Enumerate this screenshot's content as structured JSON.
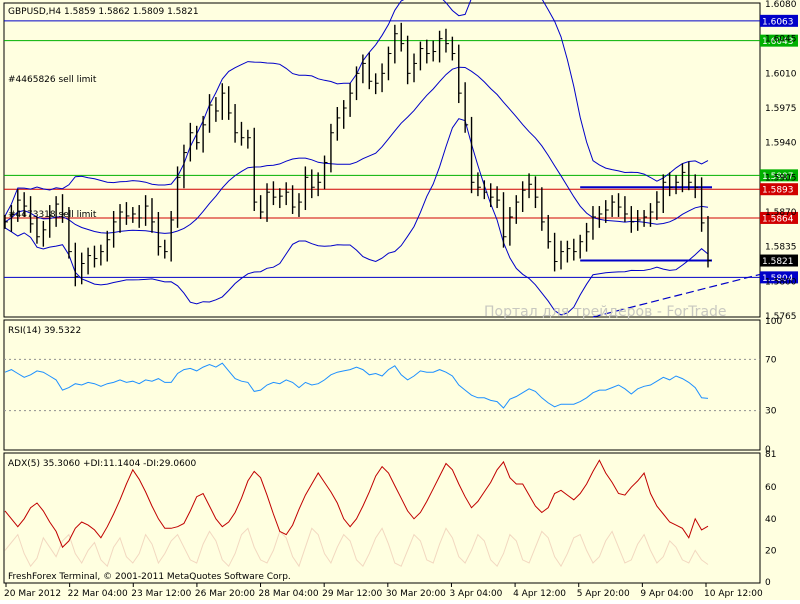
{
  "app": {
    "footer": "FreshForex Terminal, © 2001-2011 MetaQuotes Software Corp.",
    "watermark": "Портал для трейдеров - ForTrade"
  },
  "colors": {
    "background": "#ffffe0",
    "candles": "#000000",
    "bands": "#0000c8",
    "rsi": "#1e90ff",
    "adx": "#c00000",
    "di": "#f2d8c0",
    "green_level": "#00b000",
    "red_level": "#d00000",
    "blue_level": "#0000c8"
  },
  "chart_data": [
    {
      "type": "candlestick",
      "title": "GBPUSD,H4  1.5859 1.5862 1.5809 1.5821",
      "ylim": [
        1.5765,
        1.608
      ],
      "y_ticks": [
        "1.6080",
        "1.6045",
        "1.6010",
        "1.5975",
        "1.5940",
        "1.5905",
        "1.5870",
        "1.5835",
        "1.5800",
        "1.5765"
      ],
      "x_labels": [
        "20 Mar 2012",
        "22 Mar 04:00",
        "23 Mar 12:00",
        "26 Mar 20:00",
        "28 Mar 04:00",
        "29 Mar 12:00",
        "30 Mar 20:00",
        "3 Apr 04:00",
        "4 Apr 12:00",
        "5 Apr 20:00",
        "9 Apr 04:00",
        "10 Apr 12:00"
      ],
      "levels": [
        {
          "value": 1.6063,
          "label": "1.6063",
          "color": "blue"
        },
        {
          "value": 1.6043,
          "label": "1.6043",
          "color": "green"
        },
        {
          "value": 1.5907,
          "label": "1.5907",
          "color": "green"
        },
        {
          "value": 1.5893,
          "label": "1.5893",
          "color": "red"
        },
        {
          "value": 1.5864,
          "label": "1.5864",
          "color": "red"
        },
        {
          "value": 1.5821,
          "label": "1.5821",
          "color": "current"
        },
        {
          "value": 1.5804,
          "label": "1.5804",
          "color": "blue"
        }
      ],
      "annotations": [
        {
          "text": "#4465826 sell limit",
          "price": 1.6011
        },
        {
          "text": "#4473318 sell limit",
          "price": 1.5864
        }
      ],
      "close": [
        1.586,
        1.5868,
        1.5882,
        1.5876,
        1.5858,
        1.5845,
        1.5852,
        1.5866,
        1.5878,
        1.5868,
        1.583,
        1.5805,
        1.5818,
        1.5826,
        1.5823,
        1.583,
        1.5842,
        1.586,
        1.587,
        1.5866,
        1.5868,
        1.5864,
        1.5876,
        1.586,
        1.5835,
        1.583,
        1.5862,
        1.5905,
        1.593,
        1.595,
        1.594,
        1.5958,
        1.5978,
        1.5972,
        1.599,
        1.597,
        1.595,
        1.5945,
        1.5945,
        1.588,
        1.587,
        1.589,
        1.5885,
        1.5886,
        1.589,
        1.5875,
        1.588,
        1.5905,
        1.5895,
        1.59,
        1.592,
        1.595,
        1.5965,
        1.5975,
        1.599,
        1.601,
        1.602,
        1.6002,
        1.6,
        1.601,
        1.603,
        1.605,
        1.604,
        1.601,
        1.602,
        1.6035,
        1.603,
        1.6032,
        1.6045,
        1.604,
        1.603,
        1.599,
        1.5958,
        1.59,
        1.5895,
        1.589,
        1.5885,
        1.5882,
        1.5845,
        1.5865,
        1.588,
        1.5892,
        1.5898,
        1.5885,
        1.586,
        1.584,
        1.582,
        1.583,
        1.5833,
        1.583,
        1.584,
        1.585,
        1.5865,
        1.5868,
        1.5872,
        1.588,
        1.5875,
        1.5868,
        1.586,
        1.5862,
        1.5865,
        1.587,
        1.588,
        1.59,
        1.5895,
        1.59,
        1.591,
        1.59,
        1.5895,
        1.5859,
        1.5821
      ]
    },
    {
      "type": "line",
      "title": "RSI(14) 39.5322",
      "ylim": [
        0,
        100
      ],
      "y_ticks": [
        "100",
        "70",
        "30",
        "0"
      ],
      "levels": [
        70,
        30
      ],
      "values": [
        60,
        62,
        59,
        56,
        58,
        61,
        60,
        57,
        54,
        46,
        48,
        51,
        50,
        52,
        51,
        49,
        51,
        52,
        54,
        52,
        53,
        51,
        54,
        53,
        55,
        52,
        52,
        59,
        62,
        63,
        61,
        64,
        66,
        64,
        67,
        61,
        55,
        53,
        52,
        45,
        46,
        50,
        52,
        51,
        54,
        52,
        48,
        52,
        50,
        51,
        54,
        58,
        60,
        61,
        62,
        64,
        62,
        58,
        59,
        57,
        62,
        65,
        58,
        54,
        57,
        61,
        60,
        60,
        62,
        60,
        57,
        50,
        46,
        42,
        40,
        40,
        38,
        37,
        32,
        39,
        41,
        44,
        47,
        45,
        40,
        36,
        33,
        35,
        35,
        35,
        37,
        40,
        44,
        46,
        46,
        48,
        50,
        47,
        43,
        47,
        49,
        50,
        53,
        56,
        54,
        57,
        55,
        52,
        48,
        40,
        39.5
      ]
    },
    {
      "type": "line",
      "title": "ADX(5) 35.3060 +DI:11.1404 -DI:29.0600",
      "ylim": [
        0,
        81
      ],
      "y_ticks": [
        "81",
        "60",
        "40",
        "20",
        "0"
      ],
      "series": [
        {
          "name": "ADX",
          "values": [
            45,
            40,
            35,
            40,
            47,
            50,
            45,
            38,
            32,
            22,
            26,
            34,
            38,
            36,
            33,
            28,
            35,
            43,
            52,
            62,
            71,
            65,
            57,
            48,
            40,
            34,
            34,
            35,
            37,
            45,
            54,
            56,
            48,
            40,
            35,
            38,
            44,
            53,
            64,
            70,
            66,
            55,
            43,
            32,
            30,
            36,
            46,
            55,
            62,
            69,
            63,
            57,
            50,
            40,
            35,
            40,
            48,
            57,
            67,
            73,
            69,
            61,
            53,
            45,
            40,
            44,
            51,
            59,
            67,
            75,
            71,
            62,
            54,
            47,
            51,
            57,
            63,
            71,
            76,
            66,
            62,
            62,
            55,
            48,
            44,
            47,
            56,
            58,
            55,
            52,
            56,
            62,
            70,
            77,
            69,
            63,
            56,
            55,
            60,
            64,
            69,
            56,
            48,
            43,
            38,
            36,
            34,
            28,
            40,
            33,
            35.3
          ]
        },
        {
          "name": "+DI",
          "values": [
            20,
            25,
            30,
            18,
            10,
            15,
            28,
            22,
            16,
            26,
            30,
            18,
            12,
            20,
            25,
            14,
            10,
            22,
            28,
            16,
            12,
            18,
            30,
            24,
            12,
            18,
            26,
            30,
            22,
            14,
            12,
            24,
            32,
            26,
            14,
            10,
            18,
            30,
            34,
            22,
            14,
            12,
            20,
            32,
            28,
            16,
            10,
            22,
            34,
            30,
            18,
            12,
            22,
            30,
            26,
            14,
            10,
            18,
            28,
            34,
            24,
            12,
            10,
            20,
            30,
            26,
            14,
            12,
            24,
            34,
            28,
            16,
            12,
            20,
            30,
            26,
            14,
            10,
            18,
            30,
            26,
            14,
            12,
            22,
            32,
            28,
            16,
            10,
            18,
            28,
            30,
            20,
            12,
            16,
            26,
            32,
            22,
            12,
            14,
            24,
            30,
            20,
            12,
            16,
            26,
            22,
            14,
            12,
            20,
            14,
            11.1
          ]
        }
      ]
    }
  ]
}
